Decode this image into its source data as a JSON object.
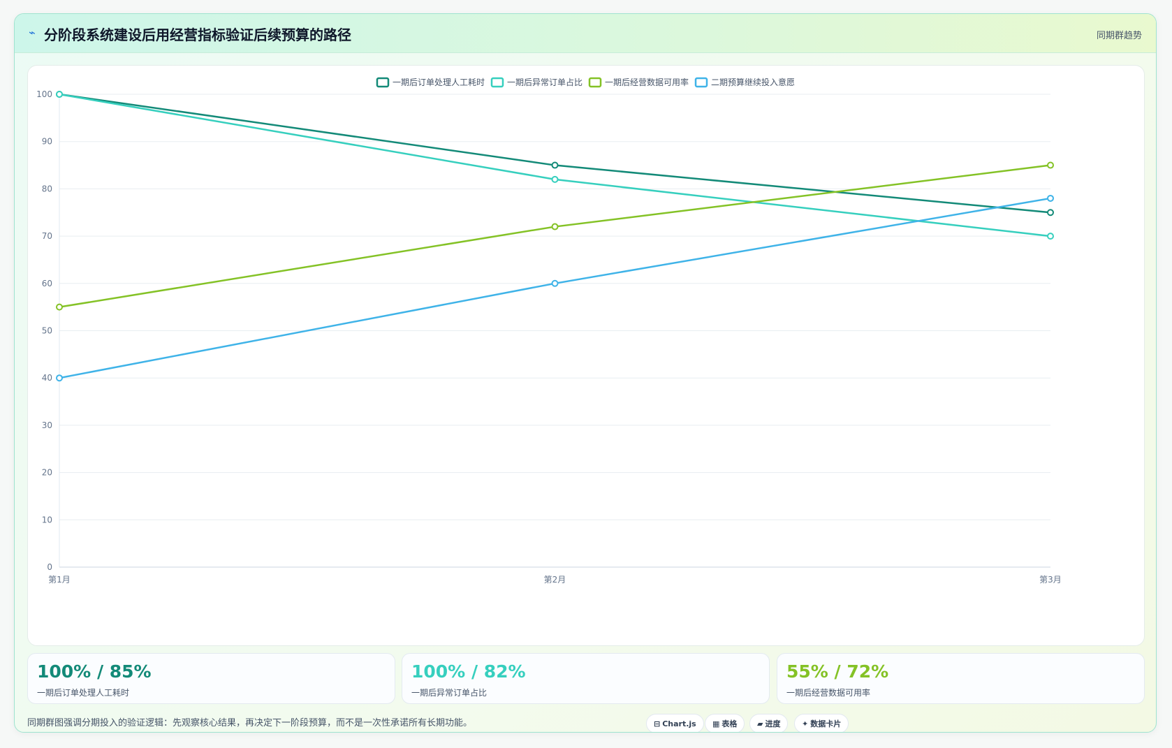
{
  "header": {
    "icon": "⌁",
    "title": "分阶段系统建设后用经营指标验证后续预算的路径",
    "tag": "同期群趋势"
  },
  "chart_data": {
    "type": "line",
    "categories": [
      "第1月",
      "第2月",
      "第3月"
    ],
    "series": [
      {
        "name": "一期后订单处理人工耗时",
        "values": [
          100,
          85,
          75
        ],
        "color": "#138a78"
      },
      {
        "name": "一期后异常订单占比",
        "values": [
          100,
          82,
          70
        ],
        "color": "#36cfbe"
      },
      {
        "name": "一期后经营数据可用率",
        "values": [
          55,
          72,
          85
        ],
        "color": "#84c226"
      },
      {
        "name": "二期预算继续投入意愿",
        "values": [
          40,
          60,
          78
        ],
        "color": "#3fb3e8"
      }
    ],
    "ylim": [
      0,
      100
    ],
    "yticks": [
      0,
      10,
      20,
      30,
      40,
      50,
      60,
      70,
      80,
      90,
      100
    ],
    "grid": true,
    "legend": "top-center"
  },
  "stats": [
    {
      "value": "100% / 85%",
      "label": "一期后订单处理人工耗时",
      "color": "#138a78"
    },
    {
      "value": "100% / 82%",
      "label": "一期后异常订单占比",
      "color": "#36cfbe"
    },
    {
      "value": "55% / 72%",
      "label": "一期后经营数据可用率",
      "color": "#84c226"
    }
  ],
  "footer": {
    "note": "同期群图强调分期投入的验证逻辑：先观察核心结果，再决定下一阶段预算，而不是一次性承诺所有长期功能。",
    "chips": [
      {
        "icon": "⊟",
        "label": "Chart.js"
      },
      {
        "icon": "▦",
        "label": "表格"
      },
      {
        "icon": "▰",
        "label": "进度"
      },
      {
        "icon": "✦",
        "label": "数据卡片"
      }
    ]
  }
}
